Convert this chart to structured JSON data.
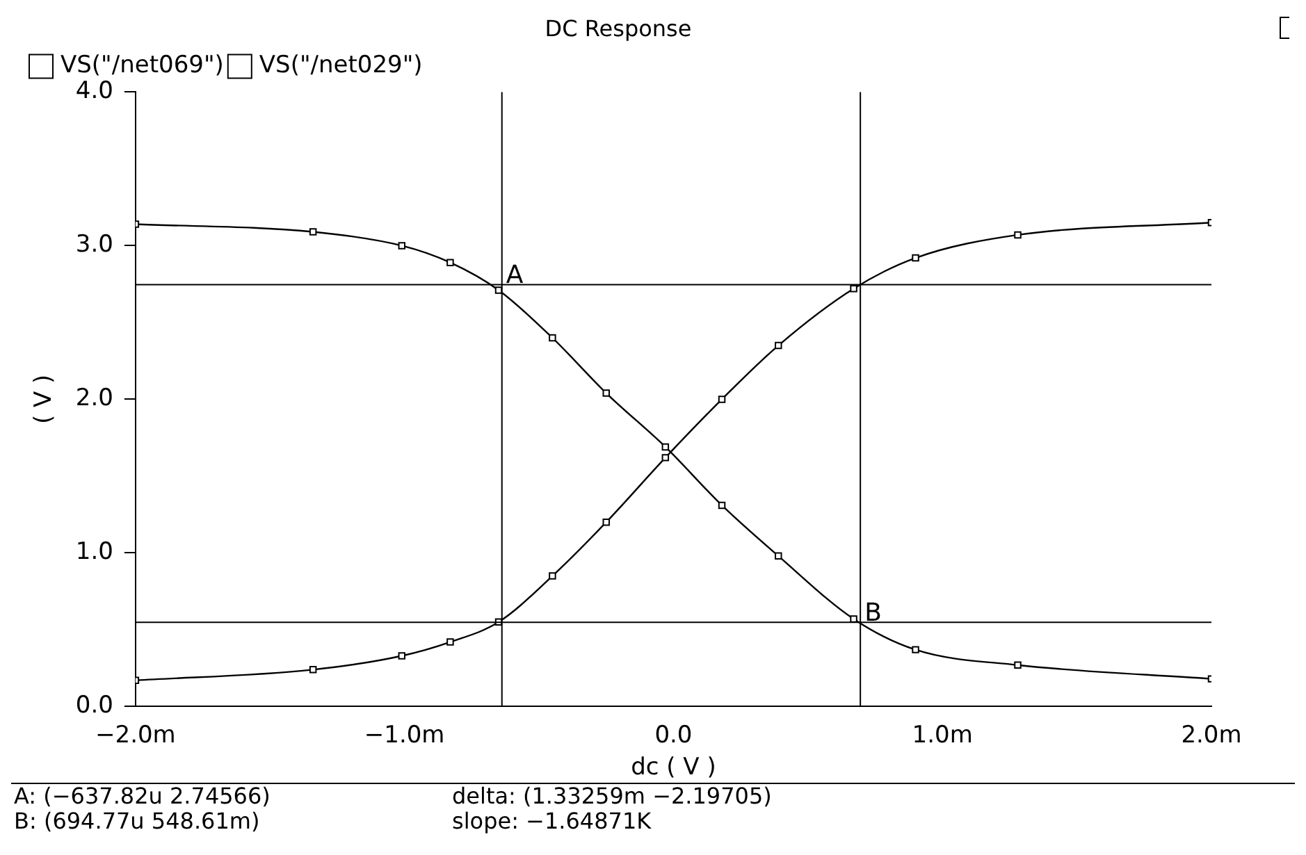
{
  "chart_data": {
    "type": "line",
    "title": "DC Response",
    "xlabel": "dc ( V )",
    "ylabel": "( V )",
    "x": [
      -2.0,
      -1.34,
      -1.01,
      -0.83,
      -0.65,
      -0.45,
      -0.25,
      -0.03,
      0.18,
      0.39,
      0.67,
      0.9,
      1.28,
      2.0
    ],
    "series": [
      {
        "name": "VS(\"/net069\")",
        "color": "#000000",
        "values": [
          0.17,
          0.24,
          0.33,
          0.42,
          0.55,
          0.85,
          1.2,
          1.62,
          2.0,
          2.35,
          2.72,
          2.92,
          3.07,
          3.15
        ]
      },
      {
        "name": "VS(\"/net029\")",
        "color": "#000000",
        "values": [
          3.14,
          3.09,
          3.0,
          2.89,
          2.71,
          2.4,
          2.04,
          1.69,
          1.31,
          0.98,
          0.57,
          0.37,
          0.27,
          0.18
        ]
      }
    ],
    "xlim": [
      -2,
      2
    ],
    "ylim": [
      0,
      4
    ],
    "xticks": [
      {
        "value": -2,
        "label": "−2.0m"
      },
      {
        "value": -1,
        "label": "−1.0m"
      },
      {
        "value": 0,
        "label": "0.0"
      },
      {
        "value": 1,
        "label": "1.0m"
      },
      {
        "value": 2,
        "label": "2.0m"
      }
    ],
    "yticks": [
      {
        "value": 0,
        "label": "0.0"
      },
      {
        "value": 1,
        "label": "1.0"
      },
      {
        "value": 2,
        "label": "2.0"
      },
      {
        "value": 3,
        "label": "3.0"
      },
      {
        "value": 4,
        "label": "4.0"
      }
    ],
    "grid": false,
    "legend": "top left",
    "line_style": "solid",
    "marker": "square",
    "ref_lines": [
      {
        "axis": "x",
        "value": -0.63782,
        "color": "#000000"
      },
      {
        "axis": "x",
        "value": 0.69477,
        "color": "#000000"
      },
      {
        "axis": "y",
        "value": 2.74566,
        "color": "#000000"
      },
      {
        "axis": "y",
        "value": 0.54861,
        "color": "#000000"
      }
    ],
    "annotations": [
      {
        "text": "A",
        "x": -0.63782,
        "y": 2.74566
      },
      {
        "text": "B",
        "x": 0.69477,
        "y": 0.54861
      },
      "A: (−637.82u 2.74566)",
      "delta: (1.33259m −2.19705)",
      "B: (694.77u 548.61m)",
      "slope: −1.64871K"
    ]
  }
}
